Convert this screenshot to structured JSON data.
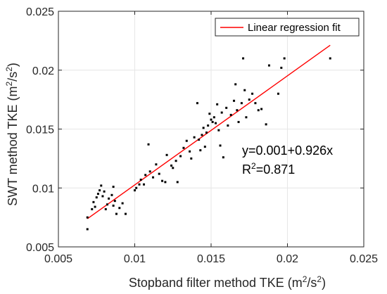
{
  "chart_data": {
    "type": "scatter",
    "xlabel": "Stopband filter method TKE (m²/s²)",
    "ylabel": "SWT method TKE (m²/s²)",
    "xlabel_parts": {
      "text": "Stopband filter method TKE (m",
      "sup1": "2",
      "mid": "/s",
      "sup2": "2",
      "end": ")"
    },
    "ylabel_parts": {
      "text": "SWT method TKE (m",
      "sup1": "2",
      "mid": "/s",
      "sup2": "2",
      "end": ")"
    },
    "xlim": [
      0.005,
      0.025
    ],
    "ylim": [
      0.005,
      0.025
    ],
    "xticks": [
      0.005,
      0.01,
      0.015,
      0.02,
      0.025
    ],
    "yticks": [
      0.005,
      0.01,
      0.015,
      0.02,
      0.025
    ],
    "xtick_labels": [
      "0.005",
      "0.01",
      "0.015",
      "0.02",
      "0.025"
    ],
    "ytick_labels": [
      "0.005",
      "0.01",
      "0.015",
      "0.02",
      "0.025"
    ],
    "grid": true,
    "legend": {
      "position": "top-right",
      "entries": [
        "Linear regression fit"
      ]
    },
    "fit": {
      "intercept": 0.001,
      "slope": 0.926,
      "x_range": [
        0.0069,
        0.0228
      ]
    },
    "annotations": {
      "equation": "y=0.001+0.926x",
      "r2_prefix": "R",
      "r2_sup": "2",
      "r2_value": "=0.871"
    },
    "series": [
      {
        "marker": "dot",
        "points": [
          [
            0.0069,
            0.0065
          ],
          [
            0.0069,
            0.0075
          ],
          [
            0.0072,
            0.0082
          ],
          [
            0.0074,
            0.0084
          ],
          [
            0.0073,
            0.0088
          ],
          [
            0.0075,
            0.0092
          ],
          [
            0.0076,
            0.0095
          ],
          [
            0.0077,
            0.0098
          ],
          [
            0.0078,
            0.0102
          ],
          [
            0.0079,
            0.0093
          ],
          [
            0.008,
            0.0097
          ],
          [
            0.0081,
            0.0082
          ],
          [
            0.0082,
            0.0086
          ],
          [
            0.0083,
            0.0091
          ],
          [
            0.0085,
            0.0094
          ],
          [
            0.0086,
            0.0085
          ],
          [
            0.0087,
            0.0089
          ],
          [
            0.0088,
            0.0078
          ],
          [
            0.009,
            0.0083
          ],
          [
            0.0092,
            0.0087
          ],
          [
            0.0086,
            0.0101
          ],
          [
            0.0094,
            0.0078
          ],
          [
            0.01,
            0.0098
          ],
          [
            0.0101,
            0.01
          ],
          [
            0.0103,
            0.0103
          ],
          [
            0.0104,
            0.0107
          ],
          [
            0.0106,
            0.0103
          ],
          [
            0.0107,
            0.0111
          ],
          [
            0.0109,
            0.0137
          ],
          [
            0.011,
            0.0114
          ],
          [
            0.0112,
            0.0109
          ],
          [
            0.0114,
            0.012
          ],
          [
            0.0116,
            0.0112
          ],
          [
            0.0118,
            0.0106
          ],
          [
            0.012,
            0.0105
          ],
          [
            0.0121,
            0.0128
          ],
          [
            0.0124,
            0.0119
          ],
          [
            0.0125,
            0.0117
          ],
          [
            0.0127,
            0.0123
          ],
          [
            0.0128,
            0.0105
          ],
          [
            0.013,
            0.0127
          ],
          [
            0.0132,
            0.0134
          ],
          [
            0.0134,
            0.014
          ],
          [
            0.0136,
            0.0131
          ],
          [
            0.0137,
            0.0125
          ],
          [
            0.0139,
            0.0143
          ],
          [
            0.0141,
            0.0172
          ],
          [
            0.0142,
            0.0141
          ],
          [
            0.0143,
            0.0132
          ],
          [
            0.0144,
            0.0145
          ],
          [
            0.0145,
            0.0151
          ],
          [
            0.0146,
            0.0135
          ],
          [
            0.0147,
            0.0147
          ],
          [
            0.0148,
            0.0153
          ],
          [
            0.0149,
            0.0163
          ],
          [
            0.015,
            0.0158
          ],
          [
            0.0151,
            0.0156
          ],
          [
            0.0152,
            0.016
          ],
          [
            0.0153,
            0.0155
          ],
          [
            0.0154,
            0.0171
          ],
          [
            0.0155,
            0.0149
          ],
          [
            0.0156,
            0.0136
          ],
          [
            0.0157,
            0.0164
          ],
          [
            0.0158,
            0.0126
          ],
          [
            0.016,
            0.0168
          ],
          [
            0.0161,
            0.0153
          ],
          [
            0.0163,
            0.0162
          ],
          [
            0.0165,
            0.0174
          ],
          [
            0.0166,
            0.0188
          ],
          [
            0.0167,
            0.0166
          ],
          [
            0.0168,
            0.0156
          ],
          [
            0.017,
            0.0172
          ],
          [
            0.0171,
            0.021
          ],
          [
            0.0172,
            0.0183
          ],
          [
            0.0173,
            0.016
          ],
          [
            0.0175,
            0.0175
          ],
          [
            0.0177,
            0.018
          ],
          [
            0.0179,
            0.0172
          ],
          [
            0.0181,
            0.0166
          ],
          [
            0.0183,
            0.0167
          ],
          [
            0.0186,
            0.0154
          ],
          [
            0.0188,
            0.0204
          ],
          [
            0.0194,
            0.018
          ],
          [
            0.0196,
            0.0202
          ],
          [
            0.0198,
            0.021
          ],
          [
            0.0228,
            0.021
          ]
        ]
      }
    ]
  }
}
